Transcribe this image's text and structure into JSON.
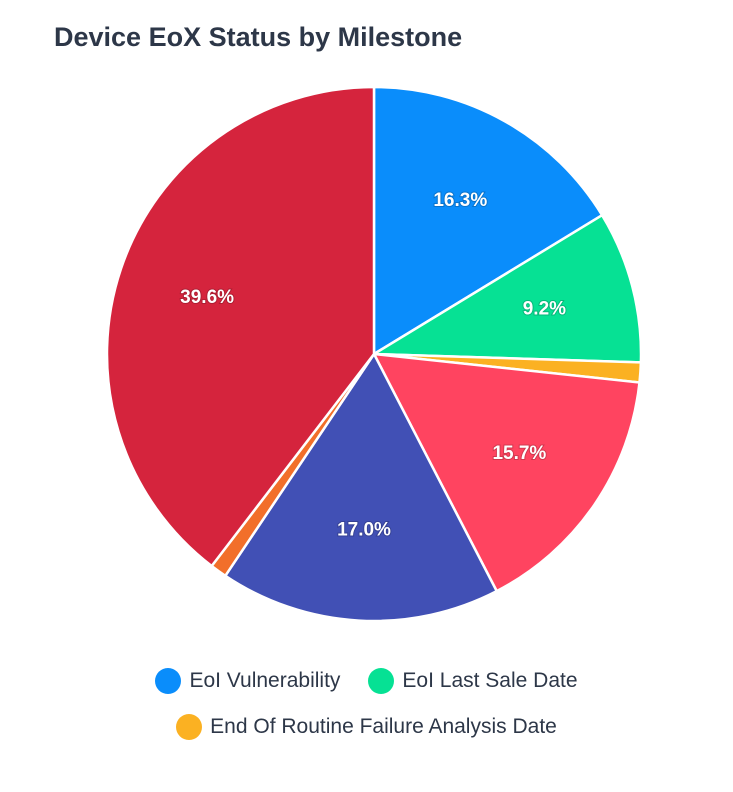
{
  "chart_data": {
    "type": "pie",
    "title": "Device EoX Status by Milestone",
    "slices": [
      {
        "name": "EoI Vulnerability",
        "value": 16.3,
        "label": "16.3%",
        "color": "#0a8dfb"
      },
      {
        "name": "EoI Last Sale Date",
        "value": 9.2,
        "label": "9.2%",
        "color": "#06e194"
      },
      {
        "name": "End Of Routine Failure Analysis Date",
        "value": 1.2,
        "label": "",
        "color": "#fbb122"
      },
      {
        "name": "",
        "value": 15.7,
        "label": "15.7%",
        "color": "#ff4460"
      },
      {
        "name": "",
        "value": 17.0,
        "label": "17.0%",
        "color": "#4150b5"
      },
      {
        "name": "",
        "value": 1.0,
        "label": "",
        "color": "#f26f2a"
      },
      {
        "name": "",
        "value": 39.6,
        "label": "39.6%",
        "color": "#d5243d"
      }
    ],
    "legend": {
      "rows": [
        [
          {
            "label": "EoI Vulnerability",
            "color": "#0a8dfb"
          },
          {
            "label": "EoI Last Sale Date",
            "color": "#06e194"
          }
        ],
        [
          {
            "label": "End Of Routine Failure Analysis Date",
            "color": "#fbb122"
          }
        ]
      ],
      "placement": "bottom"
    }
  }
}
